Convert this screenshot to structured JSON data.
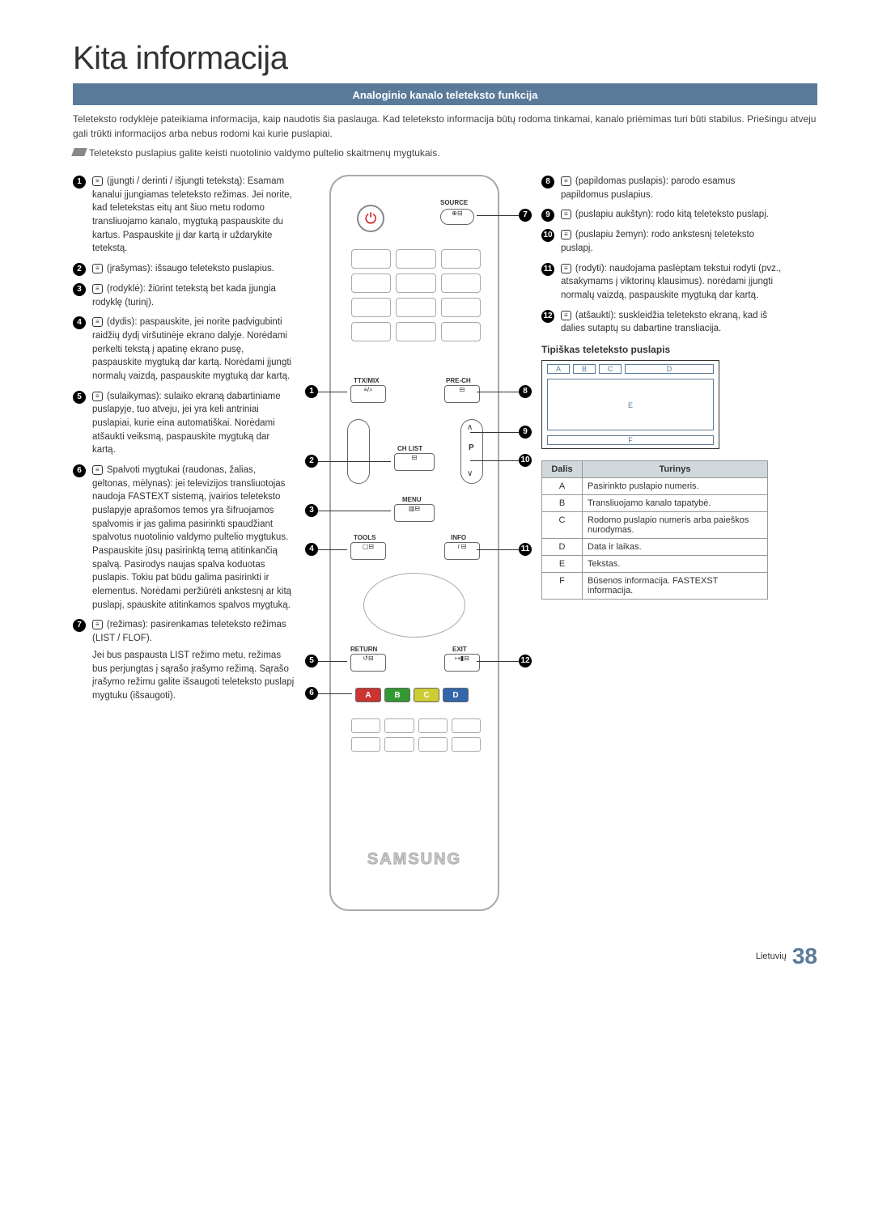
{
  "pageTitle": "Kita informacija",
  "sectionBar": "Analoginio kanalo teleteksto funkcija",
  "intro": "Teleteksto rodyklėje pateikiama informacija, kaip naudotis šia paslauga. Kad teleteksto informacija būtų rodoma tinkamai, kanalo priėmimas turi būti stabilus. Priešingu atveju gali trūkti informacijos arba nebus rodomi kai kurie puslapiai.",
  "note": "Teleteksto puslapius galite keisti nuotolinio valdymo pultelio skaitmenų mygtukais.",
  "leftItems": [
    {
      "n": "1",
      "text": "(įjungti / derinti / išjungti tetekstą): Esamam kanalui įjungiamas teleteksto režimas. Jei norite, kad teletekstas eitų ant šiuo metu rodomo transliuojamo kanalo, mygtuką paspauskite du kartus. Paspauskite jį dar kartą ir uždarykite tetekstą."
    },
    {
      "n": "2",
      "text": "(įrašymas): išsaugo teleteksto puslapius."
    },
    {
      "n": "3",
      "text": "(rodyklė): žiūrint tetekstą bet kada įjungia rodyklę (turinį)."
    },
    {
      "n": "4",
      "text": "(dydis): paspauskite, jei norite padvigubinti raidžių dydį viršutinėje ekrano dalyje. Norėdami perkelti tekstą į apatinę ekrano pusę, paspauskite mygtuką dar kartą. Norėdami įjungti normalų vaizdą, paspauskite mygtuką dar kartą."
    },
    {
      "n": "5",
      "text": "(sulaikymas): sulaiko ekraną dabartiniame puslapyje, tuo atveju, jei yra keli antriniai puslapiai, kurie eina automatiškai. Norėdami atšaukti veiksmą, paspauskite mygtuką dar kartą."
    },
    {
      "n": "6",
      "text": "Spalvoti mygtukai (raudonas, žalias, geltonas, mėlynas): jei televizijos transliuotojas naudoja FASTEXT sistemą, įvairios teleteksto puslapyje aprašomos temos yra šifruojamos spalvomis ir jas galima pasirinkti spaudžiant spalvotus nuotolinio valdymo pultelio mygtukus. Paspauskite jūsų pasirinktą temą atitinkančią spalvą. Pasirodys naujas spalva koduotas puslapis. Tokiu pat būdu galima pasirinkti ir elementus. Norėdami peržiūrėti ankstesnį ar kitą puslapį, spauskite atitinkamos spalvos mygtuką."
    },
    {
      "n": "7",
      "text": "(režimas): pasirenkamas teleteksto režimas (LIST / FLOF).",
      "sub": "Jei bus paspausta LIST režimo metu, režimas bus perjungtas į sąrašo įrašymo režimą. Sąrašo įrašymo režimu galite išsaugoti teleteksto puslapį mygtuku (išsaugoti)."
    }
  ],
  "rightItems": [
    {
      "n": "8",
      "text": "(papildomas puslapis): parodo esamus papildomus puslapius."
    },
    {
      "n": "9",
      "text": "(puslapiu aukštyn): rodo kitą teleteksto puslapį."
    },
    {
      "n": "10",
      "text": "(puslapiu žemyn): rodo ankstesnį teleteksto puslapį."
    },
    {
      "n": "11",
      "text": "(rodyti): naudojama paslėptam tekstui rodyti (pvz., atsakymams į viktorinų klausimus). norėdami įjungti normalų vaizdą, paspauskite mygtuką dar kartą."
    },
    {
      "n": "12",
      "text": "(atšaukti): suskleidžia teleteksto ekraną, kad iš dalies sutaptų su dabartine transliacija."
    }
  ],
  "typicalHeading": "Tipiškas teleteksto puslapis",
  "diagram": {
    "A": "A",
    "B": "B",
    "C": "C",
    "D": "D",
    "E": "E",
    "F": "F"
  },
  "table": {
    "headers": [
      "Dalis",
      "Turinys"
    ],
    "rows": [
      [
        "A",
        "Pasirinkto puslapio numeris."
      ],
      [
        "B",
        "Transliuojamo kanalo tapatybė."
      ],
      [
        "C",
        "Rodomo puslapio numeris arba paieškos nurodymas."
      ],
      [
        "D",
        "Data ir laikas."
      ],
      [
        "E",
        "Tekstas."
      ],
      [
        "F",
        "Būsenos informacija. FASTEXST informacija."
      ]
    ]
  },
  "remote": {
    "source": "SOURCE",
    "ttx": "TTX/MIX",
    "prech": "PRE-CH",
    "chlist": "CH LIST",
    "menu": "MENU",
    "tools": "TOOLS",
    "info": "INFO",
    "return": "RETURN",
    "exit": "EXIT",
    "p": "P",
    "colors": {
      "A": "#c33",
      "B": "#393",
      "C": "#cc3",
      "D": "#36a"
    },
    "brand": "SAMSUNG"
  },
  "footer": {
    "lang": "Lietuvių",
    "page": "38"
  }
}
